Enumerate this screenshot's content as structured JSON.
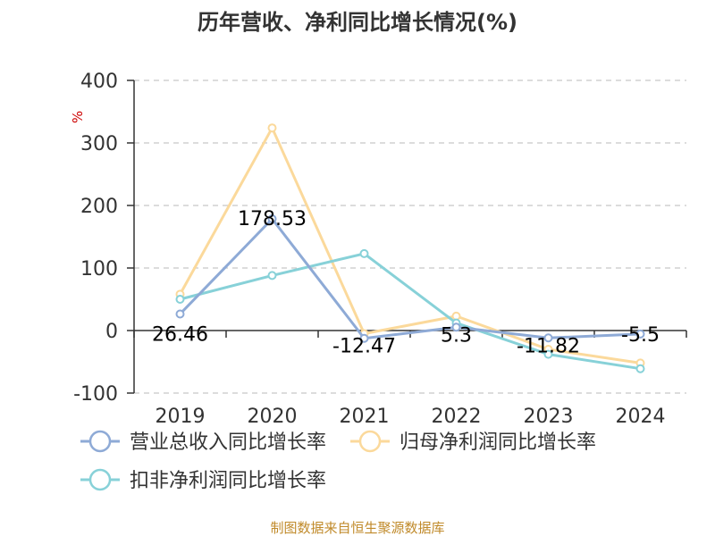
{
  "colors": {
    "revenue": "#8eaad6",
    "net_profit": "#fbd99b",
    "deducted_profit": "#87d1d8",
    "grid": "#c8c8c8",
    "axis": "#333333",
    "source": "#c08a2a"
  },
  "source_text": "制图数据来自恒生聚源数据库",
  "chart_data": {
    "type": "line",
    "title": "历年营收、净利同比增长情况(%)",
    "ylabel": "%",
    "xlabel": "",
    "categories": [
      "2019",
      "2020",
      "2021",
      "2022",
      "2023",
      "2024"
    ],
    "ylim": [
      -100,
      400
    ],
    "yticks": [
      -100,
      0,
      100,
      200,
      300,
      400
    ],
    "grid": true,
    "legend_position": "bottom",
    "series": [
      {
        "name": "营业总收入同比增长率",
        "color_key": "revenue",
        "values": [
          26.46,
          178.53,
          -12.47,
          5.3,
          -11.82,
          -5.5
        ],
        "labels": [
          "26.46",
          "178.53",
          "-12.47",
          "5.3",
          "-11.82",
          "-5.5"
        ]
      },
      {
        "name": "归母净利润同比增长率",
        "color_key": "net_profit",
        "values": [
          58,
          324,
          -5,
          23,
          -30,
          -52
        ],
        "labels": []
      },
      {
        "name": "扣非净利润同比增长率",
        "color_key": "deducted_profit",
        "values": [
          50,
          88,
          123,
          12,
          -38,
          -61
        ],
        "labels": []
      }
    ]
  }
}
